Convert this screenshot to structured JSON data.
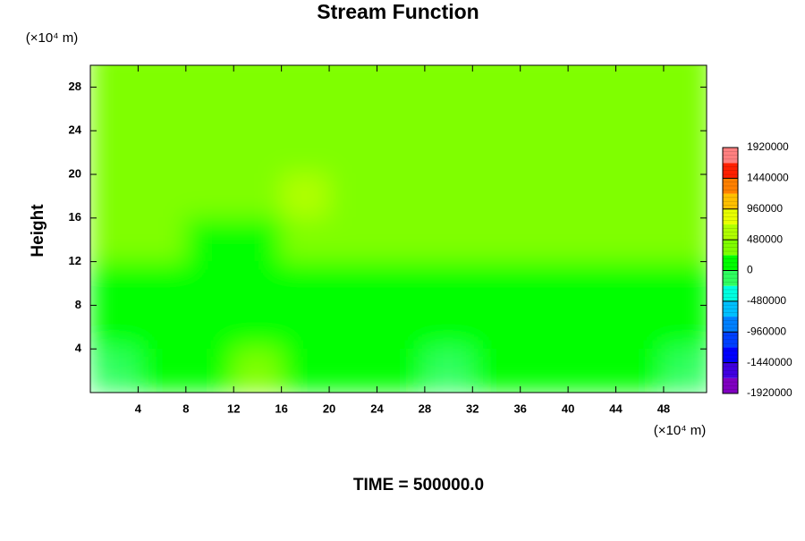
{
  "chart_data": {
    "type": "contour",
    "title": "Stream Function",
    "xlabel": "(×10⁴ m)",
    "ylabel": "Height",
    "yunit": "(×10⁴ m)",
    "footer": "TIME = 500000.0",
    "xlim": [
      0,
      51.6
    ],
    "ylim": [
      0,
      30
    ],
    "xticks": [
      4,
      8,
      12,
      16,
      20,
      24,
      28,
      32,
      36,
      40,
      44,
      48
    ],
    "yticks": [
      4,
      8,
      12,
      16,
      20,
      24,
      28
    ],
    "x": [
      2,
      6,
      10,
      14,
      18,
      22,
      26,
      30,
      34,
      38,
      42,
      46,
      50
    ],
    "y": [
      30,
      26,
      22,
      18,
      14,
      10,
      6,
      2
    ],
    "z": [
      [
        300000,
        300000,
        300000,
        300000,
        300000,
        300000,
        300000,
        300000,
        300000,
        300000,
        300000,
        300000,
        300000
      ],
      [
        300000,
        300000,
        300000,
        300000,
        300000,
        300000,
        300000,
        300000,
        300000,
        300000,
        300000,
        300000,
        300000
      ],
      [
        300000,
        300000,
        300000,
        300000,
        300000,
        300000,
        300000,
        300000,
        300000,
        300000,
        300000,
        300000,
        300000
      ],
      [
        350000,
        350000,
        350000,
        350000,
        600000,
        350000,
        300000,
        300000,
        300000,
        300000,
        300000,
        300000,
        350000
      ],
      [
        250000,
        250000,
        200000,
        200000,
        250000,
        250000,
        250000,
        250000,
        250000,
        250000,
        250000,
        250000,
        250000
      ],
      [
        100000,
        100000,
        100000,
        100000,
        50000,
        0,
        100000,
        100000,
        100000,
        100000,
        100000,
        100000,
        100000
      ],
      [
        50000,
        100000,
        150000,
        200000,
        100000,
        50000,
        50000,
        50000,
        50000,
        50000,
        50000,
        100000,
        50000
      ],
      [
        -150000,
        0,
        50000,
        250000,
        100000,
        0,
        0,
        -100000,
        0,
        0,
        0,
        50000,
        -150000
      ]
    ],
    "colorbar": {
      "zlim": [
        -1920000,
        1920000
      ],
      "ticks": [
        -1920000,
        -1440000,
        -960000,
        -480000,
        0,
        480000,
        960000,
        1440000,
        1920000
      ],
      "colors": [
        "#8000c0",
        "#4000e0",
        "#0000ff",
        "#0040ff",
        "#0080ff",
        "#00c0ff",
        "#00ffe0",
        "#30ff60",
        "#00ff00",
        "#7fff00",
        "#b0ff00",
        "#e8ff00",
        "#ffc000",
        "#ff8000",
        "#ff2000",
        "#ff8080"
      ]
    }
  }
}
